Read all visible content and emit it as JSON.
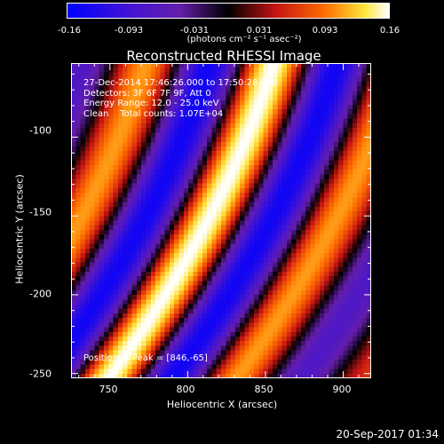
{
  "chart_data": {
    "type": "heatmap",
    "title": "Reconstructed RHESSI Image",
    "xlabel": "Heliocentric X (arcsec)",
    "ylabel": "Heliocentric Y (arcsec)",
    "xlim": [
      725,
      918
    ],
    "ylim": [
      -253,
      -53
    ],
    "x_ticks": [
      750,
      800,
      850,
      900
    ],
    "y_ticks": [
      -100,
      -150,
      -200,
      -250
    ],
    "colorbar": {
      "range": [
        -0.16,
        0.16
      ],
      "tick_labels": [
        "-0.16",
        "-0.093",
        "-0.031",
        "0.031",
        "0.093",
        "0.16"
      ],
      "units": "(photons cm⁻² s⁻¹ asec⁻²)",
      "colormap": "blue-purple-black-red-yellow-white"
    },
    "annotations": [
      "27-Dec-2014 17:46:26.000 to 17:50:28.000",
      "Detectors: 3F 6F 7F 9F, Att 0",
      "Energy Range: 12.0 - 25.0 keV",
      "Clean    Total counts: 1.07E+04"
    ],
    "peak_note": "Position of Peak = [846,-65]",
    "peak": [
      846,
      -65
    ]
  },
  "footer": {
    "timestamp": "20-Sep-2017 01:34"
  },
  "colors": {
    "background": "#000000",
    "text": "#ffffff"
  }
}
